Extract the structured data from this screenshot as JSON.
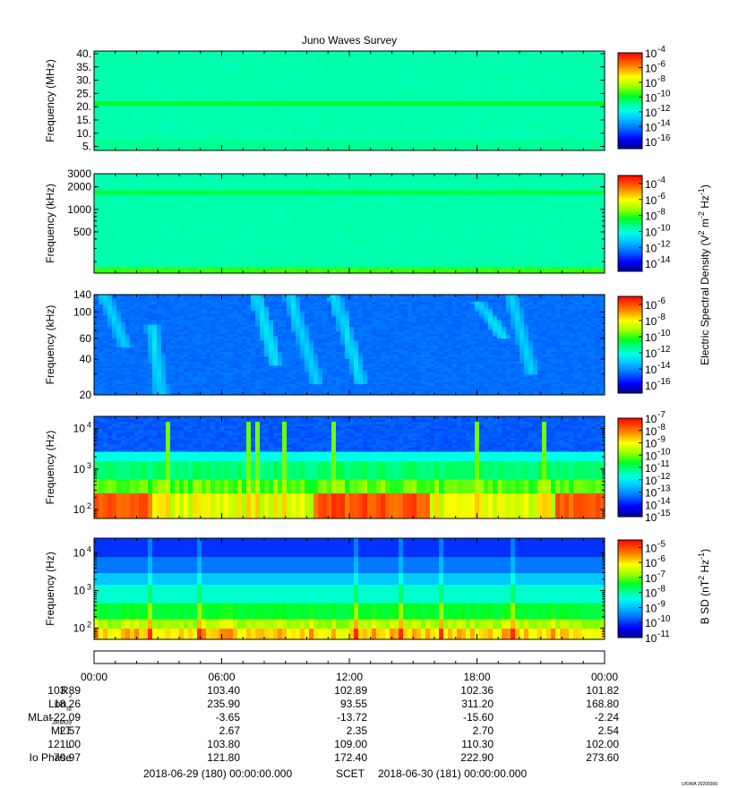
{
  "chart_data": {
    "type": "heatmap",
    "title": "Juno Waves Survey",
    "footer_left": "2018-06-29 (180) 00:00:00.000",
    "footer_mid": "SCET",
    "footer_right": "2018-06-30 (181) 00:00:00.000",
    "stamp": "UIOWA 20200306",
    "time_ticks": [
      "00:00",
      "06:00",
      "12:00",
      "18:00",
      "00:00"
    ],
    "panels": [
      {
        "id": "p1",
        "ylabel": "Frequency (MHz)",
        "yscale": "linear",
        "ylim": [
          3.5,
          41
        ],
        "yticks": [
          {
            "v": 5,
            "t": "5."
          },
          {
            "v": 10,
            "t": "10."
          },
          {
            "v": 15,
            "t": "15."
          },
          {
            "v": 20,
            "t": "20."
          },
          {
            "v": 25,
            "t": "25."
          },
          {
            "v": 30,
            "t": "30."
          },
          {
            "v": 35,
            "t": "35."
          },
          {
            "v": 40,
            "t": "40."
          }
        ],
        "colorbar_ticks": [
          -4,
          -6,
          -8,
          -10,
          -12,
          -14,
          -16
        ],
        "colorbar_range": [
          -17,
          -4
        ],
        "background_level": 0.45,
        "features": [
          {
            "type": "band",
            "freq": 21.5,
            "width": 1.5,
            "level": 0.55
          }
        ]
      },
      {
        "id": "p2",
        "ylabel": "Frequency (kHz)",
        "yscale": "log",
        "ylim": [
          140,
          3000
        ],
        "yticks": [
          {
            "v": 500,
            "t": "500"
          },
          {
            "v": 1000,
            "t": "1000"
          },
          {
            "v": 2000,
            "t": "2000"
          },
          {
            "v": 3000,
            "t": "3000"
          }
        ],
        "colorbar_ticks": [
          -4,
          -6,
          -8,
          -10,
          -12,
          -14
        ],
        "colorbar_range": [
          -15,
          -3
        ],
        "background_level": 0.45,
        "features": [
          {
            "type": "band",
            "freq": 1700,
            "width": 200,
            "level": 0.53
          },
          {
            "type": "lowband",
            "below": 175,
            "level": 0.58
          }
        ]
      },
      {
        "id": "p3",
        "ylabel": "Frequency (kHz)",
        "yscale": "log",
        "ylim": [
          20,
          140
        ],
        "yticks": [
          {
            "v": 20,
            "t": "20"
          },
          {
            "v": 40,
            "t": "40"
          },
          {
            "v": 60,
            "t": "60"
          },
          {
            "v": 100,
            "t": "100"
          },
          {
            "v": 140,
            "t": "140"
          }
        ],
        "colorbar_ticks": [
          -6,
          -8,
          -10,
          -12,
          -14,
          -16
        ],
        "colorbar_range": [
          -17,
          -5
        ],
        "background_level": 0.2,
        "features": [
          {
            "type": "burst",
            "t0": 0.5,
            "t1": 1.5,
            "f0": 140,
            "f1": 50
          },
          {
            "type": "burst",
            "t0": 2.7,
            "t1": 3.2,
            "f0": 80,
            "f1": 20
          },
          {
            "type": "burst",
            "t0": 7.6,
            "t1": 8.6,
            "f0": 140,
            "f1": 35
          },
          {
            "type": "burst",
            "t0": 9.2,
            "t1": 10.5,
            "f0": 140,
            "f1": 25
          },
          {
            "type": "burst",
            "t0": 11.3,
            "t1": 12.6,
            "f0": 140,
            "f1": 25
          },
          {
            "type": "burst",
            "t0": 18.1,
            "t1": 19.3,
            "f0": 120,
            "f1": 60
          },
          {
            "type": "burst",
            "t0": 19.6,
            "t1": 20.6,
            "f0": 140,
            "f1": 30
          }
        ]
      },
      {
        "id": "p4",
        "ylabel": "Frequency (Hz)",
        "yscale": "log",
        "ylim": [
          60,
          20000
        ],
        "yticks": [
          {
            "v": 100,
            "t": "10",
            "e": "2"
          },
          {
            "v": 1000,
            "t": "10",
            "e": "3"
          },
          {
            "v": 10000,
            "t": "10",
            "e": "4"
          }
        ],
        "colorbar_ticks": [
          -7,
          -8,
          -9,
          -10,
          -11,
          -12,
          -13,
          -14,
          -15
        ],
        "colorbar_range": [
          -15,
          -7
        ],
        "background_level": 0.2,
        "features": [
          {
            "type": "whistler",
            "hot_intervals": [
              [
                0,
                2.8
              ],
              [
                10.3,
                15.8
              ],
              [
                21.6,
                24
              ]
            ]
          }
        ]
      },
      {
        "id": "p5",
        "ylabel": "Frequency (Hz)",
        "yscale": "log",
        "ylim": [
          50,
          25000
        ],
        "yticks": [
          {
            "v": 100,
            "t": "10",
            "e": "2"
          },
          {
            "v": 1000,
            "t": "10",
            "e": "3"
          },
          {
            "v": 10000,
            "t": "10",
            "e": "4"
          }
        ],
        "colorbar_ticks": [
          -5,
          -6,
          -7,
          -8,
          -9,
          -10,
          -11
        ],
        "colorbar_range": [
          -11,
          -4.5
        ],
        "background_level": 0.2,
        "features": [
          {
            "type": "magnetic"
          }
        ]
      }
    ],
    "colorbar_labels": [
      {
        "text": "Electric Spectral Density (V",
        "sup1": "2",
        "mid": " m",
        "sup2": "-2",
        "mid2": " Hz",
        "sup3": "-1",
        "end": ")"
      },
      {
        "text": "B SD (nT",
        "sup1": "2",
        "mid": " Hz",
        "sup2": "-1",
        "end": ")"
      }
    ],
    "ephemeris": {
      "rows": [
        {
          "label": "R",
          "sub": "J",
          "values": [
            "103.89",
            "103.40",
            "102.89",
            "102.36",
            "101.82"
          ]
        },
        {
          "label": "Lon",
          "sub": "III",
          "values": [
            "18.26",
            "235.90",
            "93.55",
            "311.20",
            "168.80"
          ]
        },
        {
          "label": "MLat",
          "sub": "JRM09",
          "values": [
            "-22.09",
            "-3.65",
            "-13.72",
            "-15.60",
            "-2.24"
          ]
        },
        {
          "label": "MLT",
          "sub": "",
          "values": [
            "2.57",
            "2.67",
            "2.35",
            "2.70",
            "2.54"
          ]
        },
        {
          "label": "L",
          "sub": "",
          "values": [
            "121.00",
            "103.80",
            "109.00",
            "110.30",
            "102.00"
          ]
        },
        {
          "label": "Io Phase",
          "sub": "",
          "values": [
            "70.97",
            "121.80",
            "172.40",
            "222.90",
            "273.60"
          ]
        }
      ]
    }
  }
}
